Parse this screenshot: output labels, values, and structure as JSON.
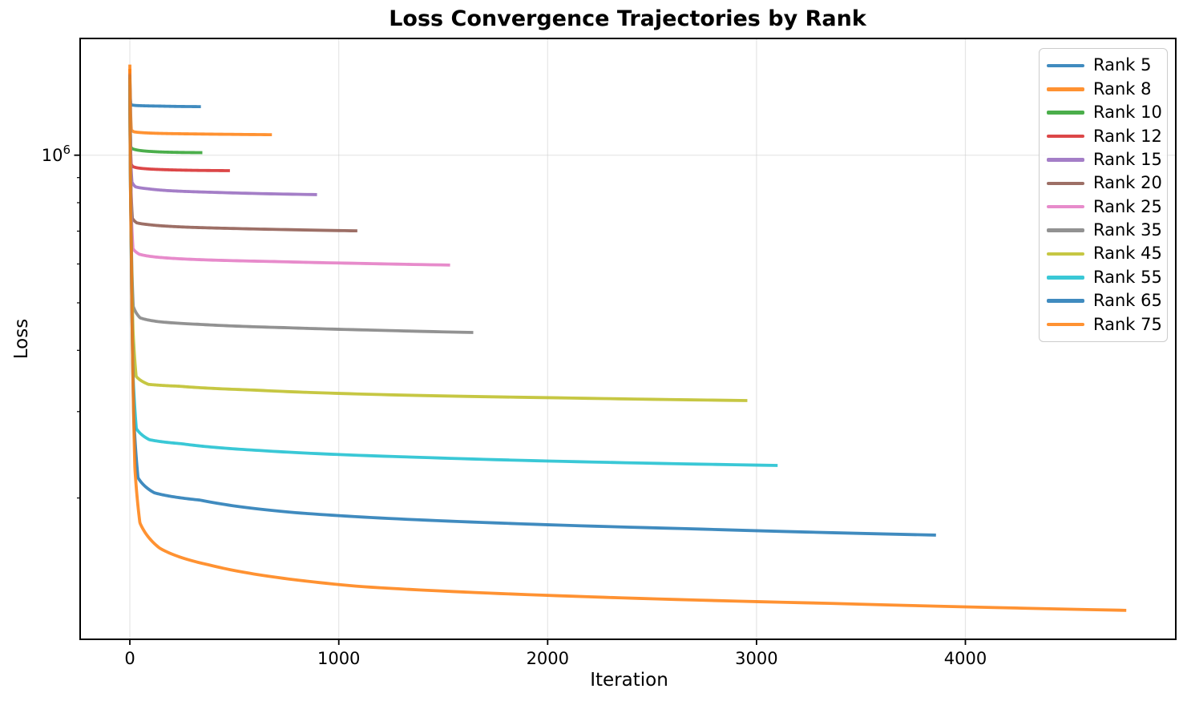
{
  "figure": {
    "title": "Loss Convergence Trajectories by Rank",
    "xlabel": "Iteration",
    "ylabel": "Loss",
    "background_color": "#ffffff",
    "text_color": "#000000",
    "spine_color": "#000000",
    "grid_color": "#cccccc"
  },
  "chart_data": {
    "type": "line",
    "title": "Loss Convergence Trajectories by Rank",
    "xlabel": "Iteration",
    "ylabel": "Loss",
    "x_scale": "linear",
    "y_scale": "log",
    "xlim": [
      -238,
      5007
    ],
    "ylim": [
      103000,
      1730000
    ],
    "x_ticks": [
      0,
      1000,
      2000,
      3000,
      4000
    ],
    "x_tick_labels": [
      "0",
      "1000",
      "2000",
      "3000",
      "4000"
    ],
    "y_major_ticks": [
      1000000
    ],
    "y_major_tick_labels": [
      {
        "base": "10",
        "exponent": "6"
      }
    ],
    "y_minor_ticks": [
      900000,
      800000,
      700000,
      600000,
      500000,
      400000,
      300000,
      200000
    ],
    "grid": {
      "show": true,
      "which": "major"
    },
    "legend_position": "upper-right",
    "line_width": 3.8,
    "line_opacity": 0.85,
    "series": [
      {
        "name": "Rank 5",
        "color": "#1f77b4",
        "final_iteration": 340,
        "final_loss": 1256000,
        "points": [
          [
            0,
            1450000
          ],
          [
            1,
            1370000
          ],
          [
            2,
            1310000
          ],
          [
            4,
            1272000
          ],
          [
            10,
            1266000
          ],
          [
            27,
            1263000
          ],
          [
            70,
            1261000
          ],
          [
            155,
            1259000
          ],
          [
            240,
            1257000
          ],
          [
            340,
            1256000
          ]
        ]
      },
      {
        "name": "Rank 8",
        "color": "#ff7f0e",
        "final_iteration": 680,
        "final_loss": 1101000,
        "points": [
          [
            0,
            1500000
          ],
          [
            2,
            1340000
          ],
          [
            4,
            1210000
          ],
          [
            7,
            1126000
          ],
          [
            20,
            1116000
          ],
          [
            54,
            1112000
          ],
          [
            136,
            1108000
          ],
          [
            306,
            1105000
          ],
          [
            476,
            1103000
          ],
          [
            680,
            1101000
          ]
        ]
      },
      {
        "name": "Rank 10",
        "color": "#2ca02c",
        "final_iteration": 347,
        "final_loss": 1012000,
        "points": [
          [
            0,
            1420000
          ],
          [
            1,
            1280000
          ],
          [
            2,
            1120000
          ],
          [
            4,
            1042000
          ],
          [
            10,
            1032000
          ],
          [
            28,
            1026000
          ],
          [
            69,
            1020000
          ],
          [
            156,
            1015000
          ],
          [
            243,
            1013000
          ],
          [
            347,
            1012000
          ]
        ]
      },
      {
        "name": "Rank 12",
        "color": "#d62728",
        "final_iteration": 479,
        "final_loss": 930000,
        "points": [
          [
            0,
            1380000
          ],
          [
            1,
            1220000
          ],
          [
            3,
            1040000
          ],
          [
            6,
            960000
          ],
          [
            14,
            948000
          ],
          [
            38,
            942000
          ],
          [
            96,
            937000
          ],
          [
            216,
            933000
          ],
          [
            335,
            931000
          ],
          [
            479,
            930000
          ]
        ]
      },
      {
        "name": "Rank 15",
        "color": "#9467bd",
        "final_iteration": 896,
        "final_loss": 831000,
        "points": [
          [
            0,
            1470000
          ],
          [
            2,
            1200000
          ],
          [
            5,
            960000
          ],
          [
            10,
            882000
          ],
          [
            27,
            862000
          ],
          [
            88,
            854000
          ],
          [
            179,
            847000
          ],
          [
            403,
            840000
          ],
          [
            627,
            835000
          ],
          [
            896,
            831000
          ]
        ]
      },
      {
        "name": "Rank 20",
        "color": "#8c564b",
        "final_iteration": 1089,
        "final_loss": 701000,
        "points": [
          [
            0,
            1440000
          ],
          [
            2,
            1150000
          ],
          [
            6,
            840000
          ],
          [
            12,
            744000
          ],
          [
            33,
            728000
          ],
          [
            87,
            722000
          ],
          [
            218,
            715000
          ],
          [
            490,
            709000
          ],
          [
            762,
            705000
          ],
          [
            1089,
            701000
          ]
        ]
      },
      {
        "name": "Rank 25",
        "color": "#e377c2",
        "final_iteration": 1533,
        "final_loss": 597000,
        "points": [
          [
            0,
            1400000
          ],
          [
            3,
            1050000
          ],
          [
            8,
            740000
          ],
          [
            15,
            645000
          ],
          [
            46,
            628000
          ],
          [
            123,
            620000
          ],
          [
            307,
            613000
          ],
          [
            690,
            607000
          ],
          [
            1073,
            602000
          ],
          [
            1533,
            597000
          ]
        ]
      },
      {
        "name": "Rank 35",
        "color": "#7f7f7f",
        "final_iteration": 1644,
        "final_loss": 435000,
        "points": [
          [
            0,
            1360000
          ],
          [
            3,
            950000
          ],
          [
            9,
            600000
          ],
          [
            16,
            492000
          ],
          [
            49,
            466000
          ],
          [
            132,
            458000
          ],
          [
            329,
            452000
          ],
          [
            740,
            445000
          ],
          [
            1151,
            440000
          ],
          [
            1644,
            435000
          ]
        ]
      },
      {
        "name": "Rank 45",
        "color": "#bcbd22",
        "final_iteration": 2956,
        "final_loss": 316000,
        "points": [
          [
            0,
            1430000
          ],
          [
            4,
            850000
          ],
          [
            15,
            440000
          ],
          [
            30,
            354000
          ],
          [
            89,
            341000
          ],
          [
            236,
            338000
          ],
          [
            591,
            332000
          ],
          [
            1330,
            324000
          ],
          [
            2069,
            320000
          ],
          [
            2956,
            316000
          ]
        ]
      },
      {
        "name": "Rank 55",
        "color": "#17becf",
        "final_iteration": 3101,
        "final_loss": 233000,
        "points": [
          [
            0,
            1390000
          ],
          [
            5,
            760000
          ],
          [
            16,
            350000
          ],
          [
            31,
            277000
          ],
          [
            93,
            263000
          ],
          [
            248,
            258000
          ],
          [
            620,
            250000
          ],
          [
            1395,
            242000
          ],
          [
            2170,
            237000
          ],
          [
            3101,
            233000
          ]
        ]
      },
      {
        "name": "Rank 65",
        "color": "#1f77b4",
        "final_iteration": 3859,
        "final_loss": 168000,
        "points": [
          [
            0,
            1460000
          ],
          [
            6,
            700000
          ],
          [
            19,
            290000
          ],
          [
            39,
            220000
          ],
          [
            116,
            205000
          ],
          [
            337,
            198000
          ],
          [
            772,
            187000
          ],
          [
            1737,
            178000
          ],
          [
            2701,
            173000
          ],
          [
            3859,
            168000
          ]
        ]
      },
      {
        "name": "Rank 75",
        "color": "#ff7f0e",
        "final_iteration": 4770,
        "final_loss": 118000,
        "points": [
          [
            0,
            1530000
          ],
          [
            7,
            640000
          ],
          [
            24,
            230000
          ],
          [
            48,
            178000
          ],
          [
            143,
            158000
          ],
          [
            381,
            146000
          ],
          [
            1100,
            132000
          ],
          [
            2142,
            126000
          ],
          [
            3332,
            122000
          ],
          [
            4770,
            118000
          ]
        ]
      }
    ]
  }
}
